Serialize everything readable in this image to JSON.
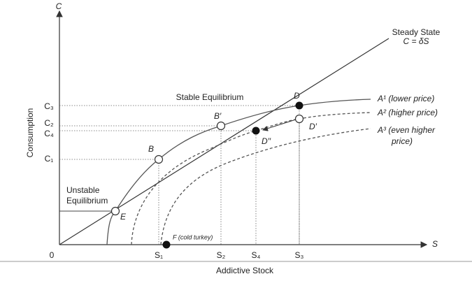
{
  "axes": {
    "y_symbol": "C",
    "x_symbol": "S",
    "origin": "0",
    "y_title": "Consumption",
    "x_title": "Addictive Stock"
  },
  "y_ticks": [
    "C₃",
    "C₂",
    "C₄",
    "C₁"
  ],
  "x_ticks": [
    "S₁",
    "S₂",
    "S₄",
    "S₃"
  ],
  "steady_state": {
    "label": "Steady State",
    "equation": "C = δS"
  },
  "curves": {
    "a1": "A¹ (lower price)",
    "a2": "A² (higher price)",
    "a3": [
      "A³ (even higher",
      "price)"
    ]
  },
  "points": {
    "d": "D",
    "b_prime": "B′",
    "b": "B",
    "d_prime": "D′",
    "d_double_prime": "D′′",
    "e": "E",
    "f": "F (cold turkey)"
  },
  "annotations": {
    "stable": "Stable Equilibrium",
    "unstable": [
      "Unstable",
      "Equilibrium"
    ]
  }
}
